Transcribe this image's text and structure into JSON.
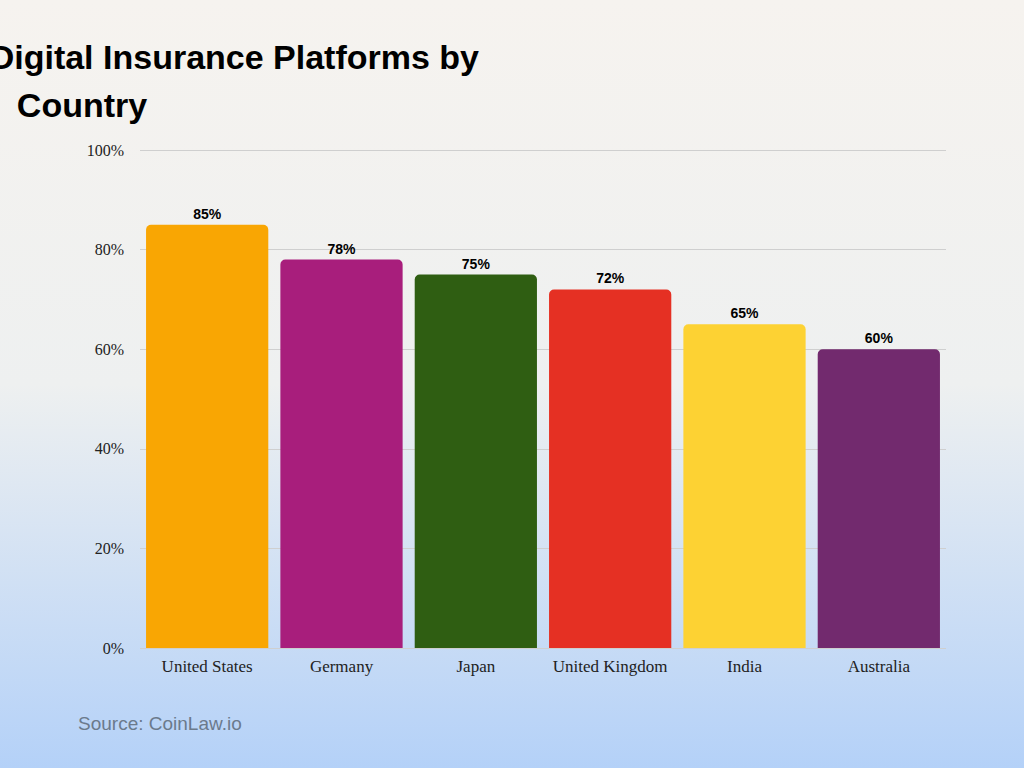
{
  "chart_data": {
    "type": "bar",
    "title": "Global Adoption of Digital Insurance Platforms by Country",
    "categories": [
      "United States",
      "Germany",
      "Japan",
      "United Kingdom",
      "India",
      "Australia"
    ],
    "values": [
      85,
      78,
      75,
      72,
      65,
      60
    ],
    "value_labels": [
      "85%",
      "78%",
      "75%",
      "72%",
      "65%",
      "60%"
    ],
    "colors": [
      "#f9a603",
      "#a81e7c",
      "#2f5e12",
      "#e53023",
      "#fdd233",
      "#722a6e"
    ],
    "ylim": [
      0,
      100
    ],
    "yticks": [
      {
        "value": 0,
        "label": "0%"
      },
      {
        "value": 20,
        "label": "20%"
      },
      {
        "value": 40,
        "label": "40%"
      },
      {
        "value": 60,
        "label": "60%"
      },
      {
        "value": 80,
        "label": "80%"
      },
      {
        "value": 100,
        "label": "100%"
      }
    ],
    "grid": true,
    "data_labels": true,
    "annotations": [
      "Source: CoinLaw.io"
    ]
  }
}
